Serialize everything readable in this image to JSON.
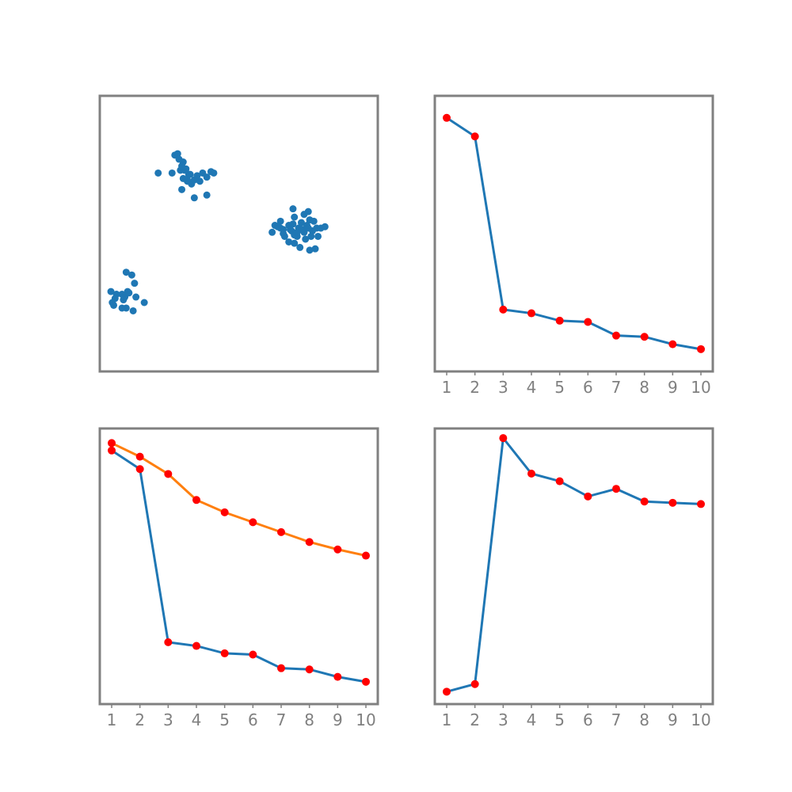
{
  "figure": {
    "background": "#ffffff",
    "frame_color": "#808080",
    "tick_label_color": "#808080"
  },
  "chart_data": [
    {
      "type": "scatter",
      "title": "",
      "xlabel": "",
      "ylabel": "",
      "axes_visible": false,
      "xlim": [
        0,
        10
      ],
      "ylim": [
        0,
        10
      ],
      "series": [
        {
          "color": "#1f77b4",
          "points": [
            [
              0.5,
              2.4
            ],
            [
              0.4,
              2.9
            ],
            [
              0.6,
              2.8
            ],
            [
              0.8,
              2.8
            ],
            [
              0.9,
              2.7
            ],
            [
              1.0,
              2.9
            ],
            [
              0.55,
              2.65
            ],
            [
              0.85,
              2.6
            ],
            [
              0.95,
              2.3
            ],
            [
              1.3,
              2.7
            ],
            [
              1.6,
              2.5
            ],
            [
              1.25,
              3.2
            ],
            [
              0.95,
              3.6
            ],
            [
              1.15,
              3.5
            ],
            [
              0.8,
              2.3
            ],
            [
              1.2,
              2.2
            ],
            [
              0.45,
              2.5
            ],
            [
              1.05,
              2.85
            ],
            [
              2.1,
              7.2
            ],
            [
              2.6,
              7.2
            ],
            [
              2.8,
              7.9
            ],
            [
              2.9,
              7.3
            ],
            [
              3.05,
              7.3
            ],
            [
              3.2,
              7.15
            ],
            [
              3.15,
              6.9
            ],
            [
              3.0,
              7.0
            ],
            [
              3.3,
              6.8
            ],
            [
              3.0,
              7.6
            ],
            [
              3.4,
              6.95
            ],
            [
              3.6,
              6.9
            ],
            [
              3.85,
              7.05
            ],
            [
              3.7,
              7.2
            ],
            [
              4.1,
              7.2
            ],
            [
              3.85,
              6.4
            ],
            [
              2.95,
              6.6
            ],
            [
              3.4,
              6.3
            ],
            [
              2.7,
              7.85
            ],
            [
              3.1,
              7.35
            ],
            [
              2.85,
              7.7
            ],
            [
              3.15,
              6.95
            ],
            [
              3.25,
              7.15
            ],
            [
              3.5,
              7.1
            ],
            [
              2.95,
              7.45
            ],
            [
              4.0,
              7.25
            ],
            [
              6.3,
              5.3
            ],
            [
              6.2,
              5.05
            ],
            [
              6.5,
              5.45
            ],
            [
              6.6,
              5.15
            ],
            [
              6.9,
              5.1
            ],
            [
              6.8,
              5.3
            ],
            [
              6.95,
              5.9
            ],
            [
              7.0,
              5.6
            ],
            [
              7.15,
              5.2
            ],
            [
              7.35,
              5.05
            ],
            [
              7.55,
              5.5
            ],
            [
              7.5,
              5.8
            ],
            [
              7.65,
              5.1
            ],
            [
              7.8,
              5.2
            ],
            [
              7.95,
              5.2
            ],
            [
              8.1,
              5.25
            ],
            [
              7.4,
              4.8
            ],
            [
              7.6,
              4.9
            ],
            [
              7.55,
              4.4
            ],
            [
              7.2,
              4.5
            ],
            [
              7.0,
              4.95
            ],
            [
              6.8,
              4.7
            ],
            [
              6.65,
              4.9
            ],
            [
              6.5,
              5.2
            ],
            [
              7.1,
              4.9
            ],
            [
              7.3,
              5.15
            ],
            [
              6.85,
              5.15
            ],
            [
              7.7,
              5.45
            ],
            [
              7.85,
              4.9
            ],
            [
              7.35,
              5.7
            ],
            [
              6.6,
              5.0
            ],
            [
              7.0,
              4.65
            ],
            [
              7.45,
              5.3
            ],
            [
              6.95,
              5.35
            ],
            [
              7.1,
              5.05
            ],
            [
              7.75,
              4.45
            ],
            [
              6.4,
              5.25
            ],
            [
              7.25,
              5.4
            ],
            [
              7.5,
              5.2
            ]
          ]
        }
      ]
    },
    {
      "type": "line",
      "title": "",
      "xlabel": "",
      "ylabel": "",
      "x": [
        1,
        2,
        3,
        4,
        5,
        6,
        7,
        8,
        9,
        10
      ],
      "ylim": [
        0.9,
        2.95
      ],
      "xticks": [
        "1",
        "2",
        "3",
        "4",
        "5",
        "6",
        "7",
        "8",
        "9",
        "10"
      ],
      "marker_color": "#ff0000",
      "series": [
        {
          "color": "#1f77b4",
          "values": [
            2.85,
            2.7,
            1.3,
            1.27,
            1.21,
            1.2,
            1.09,
            1.08,
            1.02,
            0.98
          ]
        }
      ]
    },
    {
      "type": "line",
      "title": "",
      "xlabel": "",
      "ylabel": "",
      "x": [
        1,
        2,
        3,
        4,
        5,
        6,
        7,
        8,
        9,
        10
      ],
      "ylim": [
        0.9,
        2.95
      ],
      "xticks": [
        "1",
        "2",
        "3",
        "4",
        "5",
        "6",
        "7",
        "8",
        "9",
        "10"
      ],
      "marker_color": "#ff0000",
      "series": [
        {
          "color": "#1f77b4",
          "values": [
            2.85,
            2.7,
            1.3,
            1.27,
            1.21,
            1.2,
            1.09,
            1.08,
            1.02,
            0.98
          ]
        },
        {
          "color": "#ff7f0e",
          "values": [
            2.91,
            2.8,
            2.66,
            2.45,
            2.35,
            2.27,
            2.19,
            2.11,
            2.05,
            2.0
          ]
        }
      ]
    },
    {
      "type": "line",
      "title": "",
      "xlabel": "",
      "ylabel": "",
      "x": [
        1,
        2,
        3,
        4,
        5,
        6,
        7,
        8,
        9,
        10
      ],
      "ylim": [
        0,
        1
      ],
      "xticks": [
        "1",
        "2",
        "3",
        "4",
        "5",
        "6",
        "7",
        "8",
        "9",
        "10"
      ],
      "marker_color": "#ff0000",
      "series": [
        {
          "color": "#1f77b4",
          "values": [
            0.0,
            0.03,
            1.0,
            0.86,
            0.83,
            0.77,
            0.8,
            0.75,
            0.745,
            0.74
          ]
        }
      ]
    }
  ]
}
